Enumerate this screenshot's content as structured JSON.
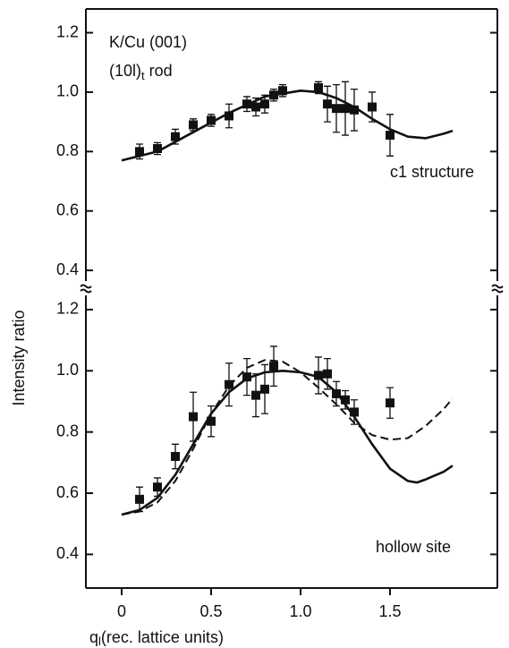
{
  "ylabel": "Intensity ratio",
  "chart_data": [
    {
      "type": "scatter",
      "annotations": [
        "K/Cu (001)",
        "c1 structure"
      ],
      "rod_label": {
        "text": "(10l)",
        "sub": "t",
        "after": " rod"
      },
      "xlim": [
        -0.2,
        2.1
      ],
      "ylim": [
        0.34,
        1.28
      ],
      "yticks": [
        0.4,
        0.6,
        0.8,
        {
          "value": 1,
          "label": "1.0"
        },
        1.2
      ],
      "series": [
        {
          "style": "markers",
          "color": "#111111",
          "x": [
            0.1,
            0.2,
            0.3,
            0.4,
            0.5,
            0.6,
            0.7,
            0.75,
            0.8,
            0.85,
            0.9,
            1.1,
            1.15,
            1.2,
            1.25,
            1.3,
            1.4,
            1.5
          ],
          "values": [
            0.8,
            0.81,
            0.85,
            0.89,
            0.905,
            0.92,
            0.96,
            0.95,
            0.96,
            0.99,
            1.005,
            1.015,
            0.96,
            0.945,
            0.945,
            0.94,
            0.95,
            0.855
          ],
          "errors": [
            0.025,
            0.02,
            0.025,
            0.02,
            0.02,
            0.04,
            0.025,
            0.03,
            0.03,
            0.02,
            0.02,
            0.02,
            0.06,
            0.08,
            0.09,
            0.07,
            0.05,
            0.07
          ]
        },
        {
          "style": "solid",
          "color": "#111111",
          "x": [
            0,
            0.2,
            0.4,
            0.6,
            0.8,
            1.0,
            1.1,
            1.2,
            1.3,
            1.4,
            1.5,
            1.6,
            1.7,
            1.8,
            1.85
          ],
          "values": [
            0.77,
            0.8,
            0.865,
            0.93,
            0.985,
            1.005,
            1.0,
            0.98,
            0.95,
            0.91,
            0.875,
            0.85,
            0.845,
            0.86,
            0.87
          ]
        }
      ]
    },
    {
      "type": "scatter",
      "annotations": [
        "hollow site"
      ],
      "xlabel": {
        "symbol": "q",
        "sub": "l",
        "text": "(rec. lattice units)"
      },
      "xlim": [
        -0.2,
        2.1
      ],
      "xticks": [
        0,
        0.5,
        {
          "value": 1,
          "label": "1.0"
        },
        1.5
      ],
      "ylim": [
        0.29,
        1.27
      ],
      "yticks": [
        0.4,
        0.6,
        0.8,
        {
          "value": 1,
          "label": "1.0"
        },
        1.2
      ],
      "series": [
        {
          "style": "markers",
          "color": "#111111",
          "x": [
            0.1,
            0.2,
            0.3,
            0.4,
            0.5,
            0.6,
            0.7,
            0.75,
            0.8,
            0.85,
            1.1,
            1.15,
            1.2,
            1.25,
            1.3,
            1.5
          ],
          "values": [
            0.58,
            0.62,
            0.72,
            0.85,
            0.835,
            0.955,
            0.98,
            0.92,
            0.94,
            1.015,
            0.985,
            0.99,
            0.925,
            0.905,
            0.865,
            0.895
          ],
          "errors": [
            0.04,
            0.03,
            0.04,
            0.08,
            0.05,
            0.07,
            0.06,
            0.07,
            0.08,
            0.065,
            0.06,
            0.05,
            0.04,
            0.03,
            0.04,
            0.05
          ]
        },
        {
          "style": "solid",
          "color": "#111111",
          "x": [
            0,
            0.1,
            0.2,
            0.3,
            0.4,
            0.5,
            0.6,
            0.7,
            0.8,
            0.9,
            1.0,
            1.1,
            1.2,
            1.3,
            1.4,
            1.5,
            1.6,
            1.65,
            1.7,
            1.8,
            1.85
          ],
          "values": [
            0.53,
            0.545,
            0.585,
            0.66,
            0.76,
            0.86,
            0.93,
            0.975,
            0.995,
            1.0,
            0.995,
            0.98,
            0.93,
            0.85,
            0.76,
            0.68,
            0.64,
            0.635,
            0.645,
            0.67,
            0.69
          ]
        },
        {
          "style": "dashed",
          "color": "#111111",
          "x": [
            0,
            0.1,
            0.2,
            0.3,
            0.4,
            0.5,
            0.6,
            0.7,
            0.8,
            0.9,
            1.0,
            1.1,
            1.2,
            1.3,
            1.4,
            1.5,
            1.6,
            1.7,
            1.8,
            1.85
          ],
          "values": [
            0.53,
            0.54,
            0.57,
            0.64,
            0.745,
            0.86,
            0.95,
            1.01,
            1.035,
            1.03,
            0.995,
            0.945,
            0.89,
            0.83,
            0.79,
            0.775,
            0.78,
            0.82,
            0.875,
            0.91
          ]
        }
      ]
    }
  ]
}
